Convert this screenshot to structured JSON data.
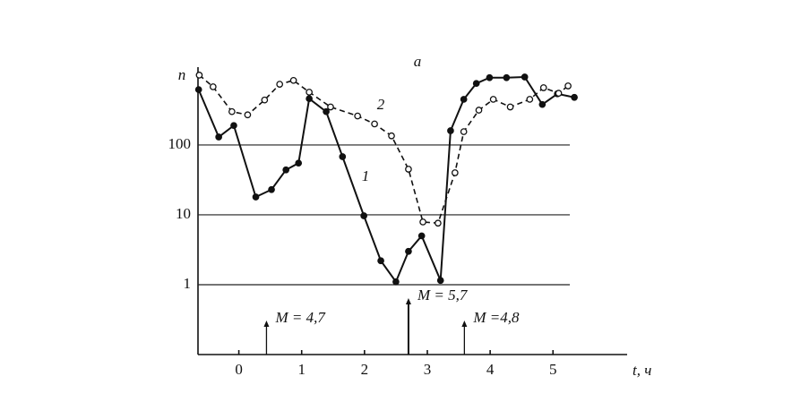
{
  "chart_data": {
    "type": "line",
    "title": "a",
    "ylabel": "n",
    "xlabel": "t, ч",
    "log_y": true,
    "grid": true,
    "xlim": [
      -0.65,
      6.18
    ],
    "xticks": [
      0,
      1,
      2,
      3,
      4,
      5
    ],
    "ylim": [
      0.1,
      1300
    ],
    "yticks": [
      1,
      10,
      100
    ],
    "series": [
      {
        "name": "1",
        "color": "#111111",
        "style": "solid",
        "marker": "filled",
        "x": [
          -0.64,
          -0.32,
          -0.08,
          0.27,
          0.52,
          0.75,
          0.95,
          1.12,
          1.39,
          1.65,
          1.99,
          2.26,
          2.5,
          2.7,
          2.91,
          3.21,
          3.37,
          3.58,
          3.78,
          3.99,
          4.26,
          4.55,
          4.83,
          5.07,
          5.34
        ],
        "values": [
          620,
          130,
          190,
          18,
          23,
          44,
          55,
          460,
          300,
          68,
          9.7,
          2.2,
          1.1,
          3,
          5,
          1.15,
          160,
          450,
          760,
          920,
          920,
          940,
          380,
          540,
          480
        ]
      },
      {
        "name": "2",
        "color": "#111111",
        "style": "dashed",
        "marker": "open",
        "x": [
          -0.63,
          -0.41,
          -0.11,
          0.14,
          0.41,
          0.65,
          0.87,
          1.12,
          1.46,
          1.89,
          2.16,
          2.43,
          2.7,
          2.93,
          3.17,
          3.44,
          3.58,
          3.82,
          4.05,
          4.32,
          4.63,
          4.85,
          5.09,
          5.24
        ],
        "values": [
          1000,
          680,
          300,
          270,
          440,
          740,
          840,
          570,
          350,
          260,
          200,
          135,
          45,
          7.9,
          7.6,
          40,
          155,
          315,
          450,
          350,
          450,
          660,
          550,
          700
        ]
      }
    ],
    "events": [
      {
        "x": 0.44,
        "label": "M = 4,7"
      },
      {
        "x": 2.7,
        "label": "M = 5,7"
      },
      {
        "x": 3.59,
        "label": "M =4,8"
      }
    ]
  }
}
